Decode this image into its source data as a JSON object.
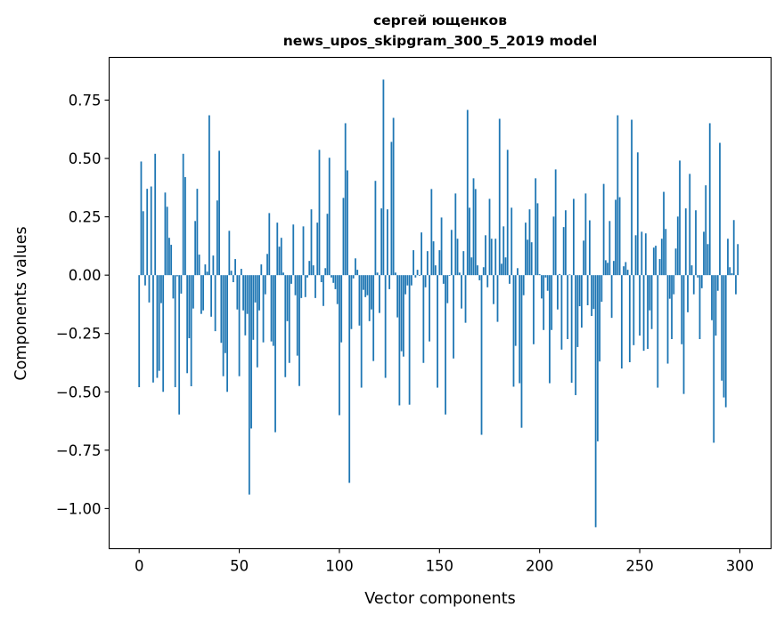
{
  "chart_data": {
    "type": "bar",
    "title": [
      "сергей ющенков",
      "news_upos_skipgram_300_5_2019 model"
    ],
    "xlabel": "Vector components",
    "ylabel": "Components values",
    "xlim": [
      -15,
      315.6
    ],
    "ylim": [
      -1.172,
      0.933
    ],
    "xticks": [
      0,
      50,
      100,
      150,
      200,
      250,
      300
    ],
    "xtick_labels": [
      "0",
      "50",
      "100",
      "150",
      "200",
      "250",
      "300"
    ],
    "yticks": [
      -1.0,
      -0.75,
      -0.5,
      -0.25,
      0.0,
      0.25,
      0.5,
      0.75
    ],
    "ytick_labels": [
      "−1.00",
      "−0.75",
      "−0.50",
      "−0.25",
      "0.00",
      "0.25",
      "0.50",
      "0.75"
    ],
    "grid": false,
    "bar_color": "#1f77b4",
    "values": [
      -0.48,
      0.487,
      0.274,
      -0.044,
      0.37,
      -0.117,
      0.38,
      -0.46,
      0.52,
      -0.44,
      -0.41,
      -0.12,
      -0.5,
      0.354,
      0.293,
      0.16,
      0.13,
      -0.1,
      -0.48,
      -0.005,
      -0.597,
      -0.079,
      0.52,
      0.42,
      -0.42,
      -0.27,
      -0.476,
      -0.143,
      0.232,
      0.37,
      0.088,
      -0.166,
      -0.151,
      0.046,
      0.015,
      0.685,
      -0.178,
      0.084,
      -0.24,
      0.32,
      0.533,
      -0.29,
      -0.433,
      -0.334,
      -0.5,
      0.19,
      0.019,
      -0.03,
      0.069,
      -0.147,
      -0.433,
      0.027,
      -0.151,
      -0.258,
      -0.166,
      -0.94,
      -0.657,
      -0.277,
      -0.117,
      -0.395,
      -0.151,
      0.046,
      -0.288,
      -0.082,
      0.091,
      0.266,
      -0.284,
      -0.303,
      -0.673,
      0.225,
      0.122,
      0.16,
      0.011,
      -0.437,
      -0.197,
      -0.376,
      -0.037,
      0.217,
      -0.086,
      -0.345,
      -0.475,
      -0.098,
      0.209,
      -0.094,
      -0.01,
      0.061,
      0.282,
      0.042,
      -0.098,
      0.225,
      0.537,
      -0.03,
      -0.132,
      0.03,
      0.263,
      0.503,
      -0.01,
      -0.033,
      -0.06,
      -0.124,
      -0.6,
      -0.288,
      0.331,
      0.651,
      0.449,
      -0.89,
      -0.231,
      -0.014,
      0.072,
      0.023,
      -0.216,
      -0.482,
      -0.063,
      -0.094,
      -0.086,
      -0.197,
      -0.147,
      -0.368,
      0.404,
      0.011,
      -0.162,
      0.286,
      0.838,
      -0.44,
      0.282,
      -0.06,
      0.571,
      0.674,
      0.011,
      -0.181,
      -0.558,
      -0.326,
      -0.349,
      -0.082,
      -0.044,
      -0.555,
      -0.044,
      0.107,
      -0.01,
      0.023,
      -0.003,
      0.183,
      -0.376,
      -0.052,
      0.103,
      -0.284,
      0.369,
      0.145,
      0.042,
      -0.482,
      0.107,
      0.247,
      -0.037,
      -0.597,
      -0.12,
      -0.003,
      0.194,
      -0.357,
      0.35,
      0.156,
      0.011,
      -0.143,
      0.103,
      -0.204,
      0.708,
      0.289,
      0.076,
      0.415,
      0.369,
      0.042,
      -0.022,
      -0.684,
      0.034,
      0.171,
      -0.052,
      0.327,
      0.156,
      -0.124,
      0.156,
      -0.2,
      0.67,
      0.049,
      0.209,
      0.076,
      0.537,
      -0.037,
      0.289,
      -0.478,
      -0.303,
      0.03,
      -0.463,
      -0.654,
      -0.086,
      0.225,
      0.152,
      0.282,
      0.141,
      -0.296,
      0.415,
      0.308,
      0.004,
      -0.1,
      -0.235,
      -0.01,
      -0.067,
      -0.463,
      -0.235,
      0.251,
      0.453,
      -0.147,
      0.005,
      -0.319,
      0.206,
      0.278,
      -0.274,
      0.003,
      -0.461,
      0.327,
      -0.514,
      -0.308,
      -0.133,
      -0.225,
      0.148,
      0.35,
      -0.129,
      0.235,
      -0.175,
      -0.145,
      -1.08,
      -0.712,
      -0.37,
      -0.114,
      0.391,
      0.064,
      0.053,
      0.232,
      -0.183,
      0.061,
      0.323,
      0.685,
      0.334,
      -0.4,
      0.038,
      0.056,
      0.023,
      -0.373,
      0.666,
      -0.3,
      0.171,
      0.526,
      -0.259,
      0.186,
      -0.324,
      0.179,
      -0.316,
      -0.151,
      -0.231,
      0.118,
      0.126,
      -0.482,
      0.069,
      0.156,
      0.357,
      0.198,
      -0.379,
      -0.101,
      -0.274,
      -0.082,
      0.114,
      0.251,
      0.491,
      -0.296,
      -0.509,
      0.286,
      -0.159,
      0.434,
      0.042,
      -0.082,
      0.278,
      -0.01,
      -0.274,
      -0.056,
      0.186,
      0.385,
      0.133,
      0.651,
      -0.193,
      -0.718,
      -0.259,
      -0.067,
      0.567,
      -0.452,
      -0.524,
      -0.566,
      0.156,
      0.034,
      0.008,
      0.236,
      -0.082,
      0.133
    ]
  }
}
